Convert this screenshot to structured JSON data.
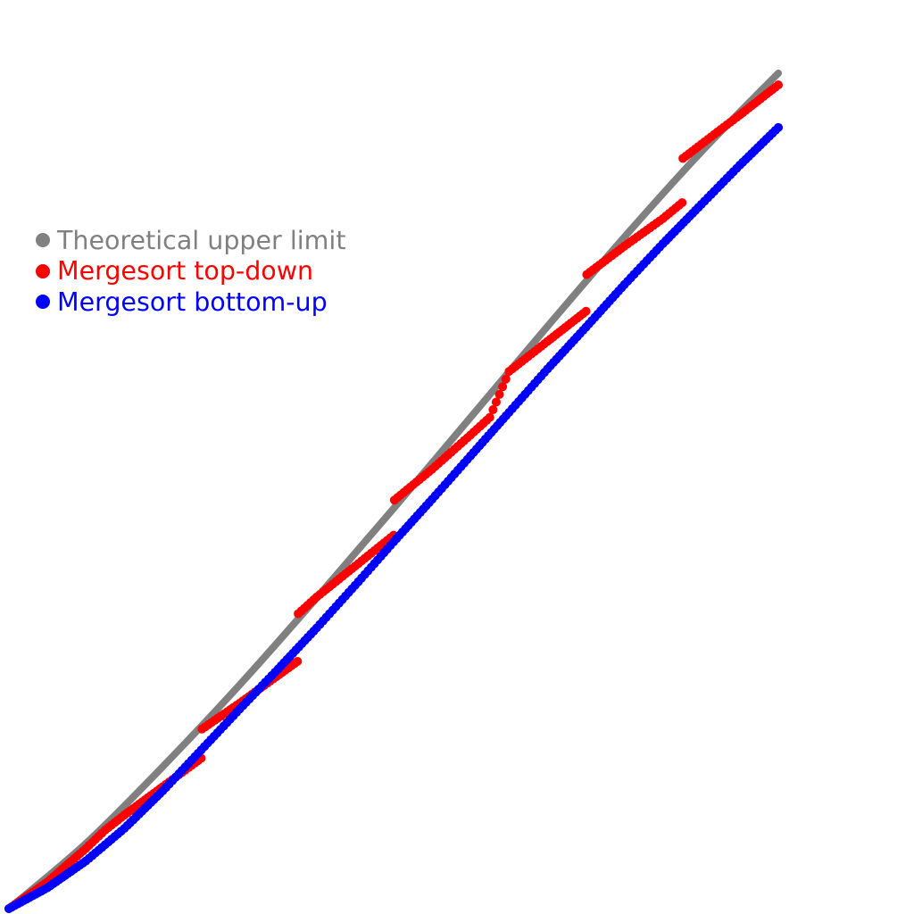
{
  "chart_data": {
    "type": "scatter",
    "title": "",
    "xlabel": "",
    "ylabel": "",
    "x_range": [
      0,
      1
    ],
    "y_range": [
      0,
      1
    ],
    "grid": false,
    "axes_visible": false,
    "legend_position": "upper-left",
    "series": [
      {
        "name": "Theoretical upper limit",
        "color": "#808080",
        "kind": "line",
        "x": [
          0.0,
          0.1,
          0.2,
          0.3,
          0.4,
          0.5,
          0.6,
          0.7,
          0.8,
          0.9,
          1.0
        ],
        "y": [
          0.0,
          0.078,
          0.17,
          0.268,
          0.372,
          0.479,
          0.588,
          0.697,
          0.804,
          0.906,
          1.0
        ]
      },
      {
        "name": "Mergesort top-down",
        "color": "#ff0000",
        "kind": "scatter",
        "x": [
          0.0,
          0.05,
          0.1,
          0.125,
          0.15,
          0.2,
          0.25,
          0.251,
          0.3,
          0.375,
          0.376,
          0.4,
          0.45,
          0.5,
          0.501,
          0.55,
          0.6,
          0.625,
          0.65,
          0.7,
          0.75,
          0.751,
          0.8,
          0.85,
          0.875,
          0.876,
          0.9,
          0.95,
          1.0
        ],
        "y": [
          0.0,
          0.032,
          0.072,
          0.094,
          0.112,
          0.146,
          0.18,
          0.215,
          0.246,
          0.296,
          0.353,
          0.373,
          0.41,
          0.447,
          0.489,
          0.526,
          0.567,
          0.588,
          0.643,
          0.679,
          0.715,
          0.759,
          0.793,
          0.826,
          0.845,
          0.898,
          0.915,
          0.95,
          0.986
        ]
      },
      {
        "name": "Mergesort bottom-up",
        "color": "#0000ff",
        "kind": "scatter",
        "x": [
          0.0,
          0.05,
          0.1,
          0.15,
          0.2,
          0.25,
          0.3,
          0.35,
          0.4,
          0.45,
          0.5,
          0.55,
          0.6,
          0.65,
          0.7,
          0.75,
          0.8,
          0.85,
          0.9,
          0.95,
          1.0
        ],
        "y": [
          0.0,
          0.025,
          0.057,
          0.096,
          0.141,
          0.19,
          0.239,
          0.287,
          0.336,
          0.387,
          0.439,
          0.49,
          0.542,
          0.594,
          0.646,
          0.696,
          0.747,
          0.796,
          0.843,
          0.89,
          0.935
        ]
      }
    ]
  }
}
